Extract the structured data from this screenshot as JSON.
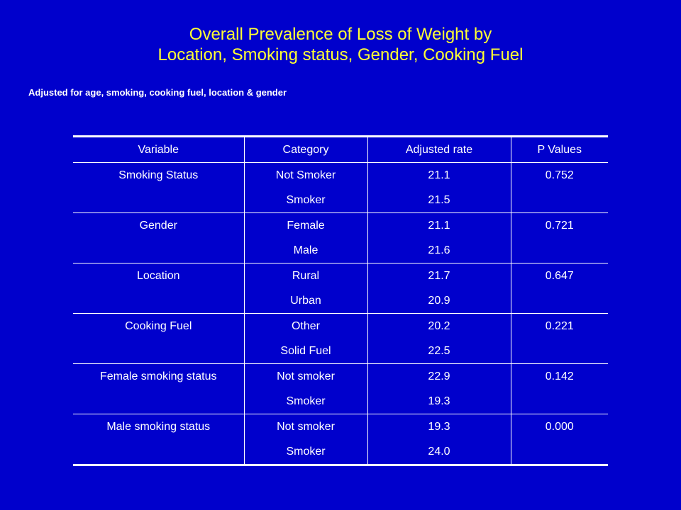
{
  "title": {
    "line1": "Overall Prevalence of Loss of Weight by",
    "line2": "Location, Smoking status, Gender, Cooking Fuel"
  },
  "subtitle": "Adjusted for age, smoking, cooking fuel, location & gender",
  "table": {
    "headers": [
      "Variable",
      "Category",
      "Adjusted rate",
      "P Values"
    ],
    "groups": [
      {
        "variable": "Smoking Status",
        "p_value": "0.752",
        "rows": [
          {
            "category": "Not Smoker",
            "rate": "21.1"
          },
          {
            "category": "Smoker",
            "rate": "21.5"
          }
        ]
      },
      {
        "variable": "Gender",
        "p_value": "0.721",
        "rows": [
          {
            "category": "Female",
            "rate": "21.1"
          },
          {
            "category": "Male",
            "rate": "21.6"
          }
        ]
      },
      {
        "variable": "Location",
        "p_value": "0.647",
        "rows": [
          {
            "category": "Rural",
            "rate": "21.7"
          },
          {
            "category": "Urban",
            "rate": "20.9"
          }
        ]
      },
      {
        "variable": "Cooking Fuel",
        "p_value": "0.221",
        "rows": [
          {
            "category": "Other",
            "rate": "20.2"
          },
          {
            "category": "Solid Fuel",
            "rate": "22.5"
          }
        ]
      },
      {
        "variable": "Female smoking status",
        "p_value": "0.142",
        "rows": [
          {
            "category": "Not smoker",
            "rate": "22.9"
          },
          {
            "category": "Smoker",
            "rate": "19.3"
          }
        ]
      },
      {
        "variable": "Male smoking status",
        "p_value": "0.000",
        "rows": [
          {
            "category": "Not smoker",
            "rate": "19.3"
          },
          {
            "category": "Smoker",
            "rate": "24.0"
          }
        ]
      }
    ]
  },
  "colors": {
    "background": "#0000cc",
    "title": "#ffff33",
    "text": "#ffffff"
  }
}
